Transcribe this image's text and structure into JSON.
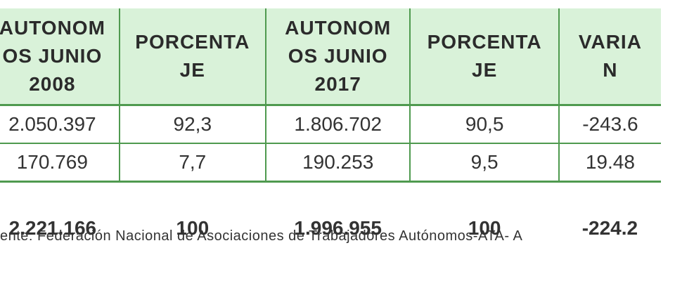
{
  "table": {
    "headers": [
      [
        "AUTONOM",
        "OS JUNIO",
        "2008"
      ],
      [
        "PORCENTA",
        "JE"
      ],
      [
        "AUTONOM",
        "OS JUNIO",
        "2017"
      ],
      [
        "PORCENTA",
        "JE"
      ],
      [
        "VARIA",
        "N"
      ]
    ],
    "rows": [
      [
        "2.050.397",
        "92,3",
        "1.806.702",
        "90,5",
        "-243.6"
      ],
      [
        "170.769",
        "7,7",
        "190.253",
        "9,5",
        "19.48"
      ]
    ],
    "totals": [
      "2.221.166",
      "100",
      "1.996.955",
      "100",
      "-224.2"
    ]
  },
  "source": "ente: Federación Nacional de Asociaciones de Trabajadores Autónomos-ATA- A"
}
